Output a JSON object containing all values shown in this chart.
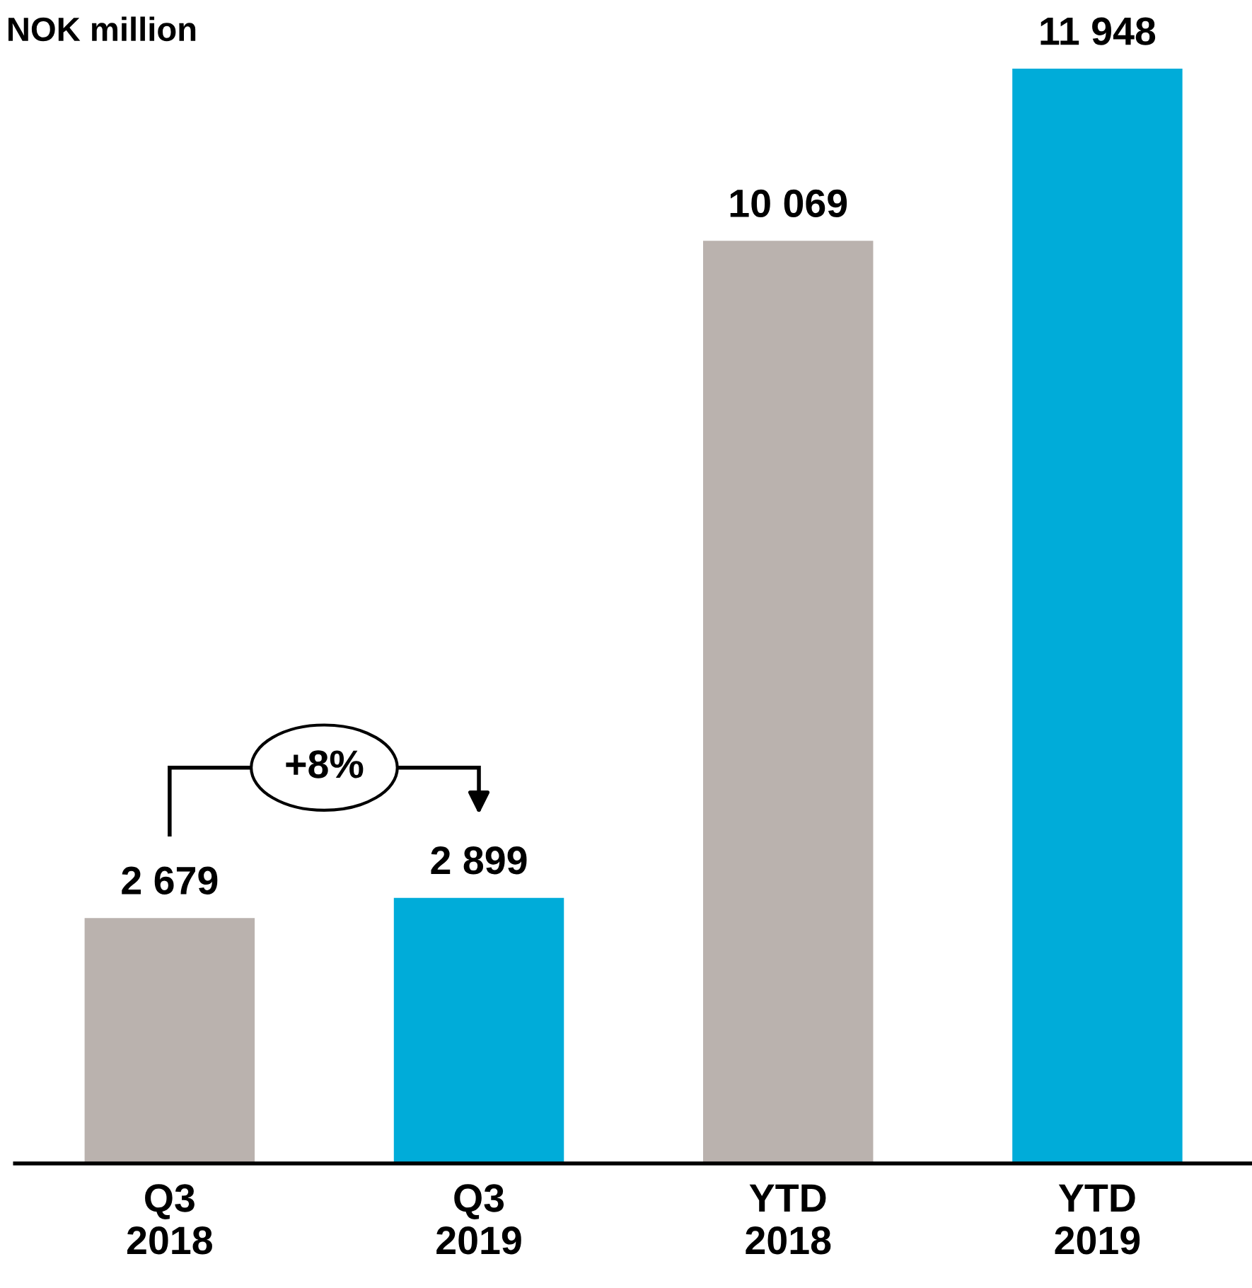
{
  "chart_data": {
    "type": "bar",
    "title": "NOK million",
    "categories": [
      "Q3\n2018",
      "Q3\n2019",
      "YTD\n2018",
      "YTD\n2019"
    ],
    "values": [
      2679,
      2899,
      10069,
      11948
    ],
    "colors": [
      "#bab2ae",
      "#00acd9",
      "#bab2ae",
      "#00acd9"
    ],
    "value_labels": [
      "2 679",
      "2 899",
      "10 069",
      "11 948"
    ],
    "annotations": [
      "+8%"
    ]
  }
}
